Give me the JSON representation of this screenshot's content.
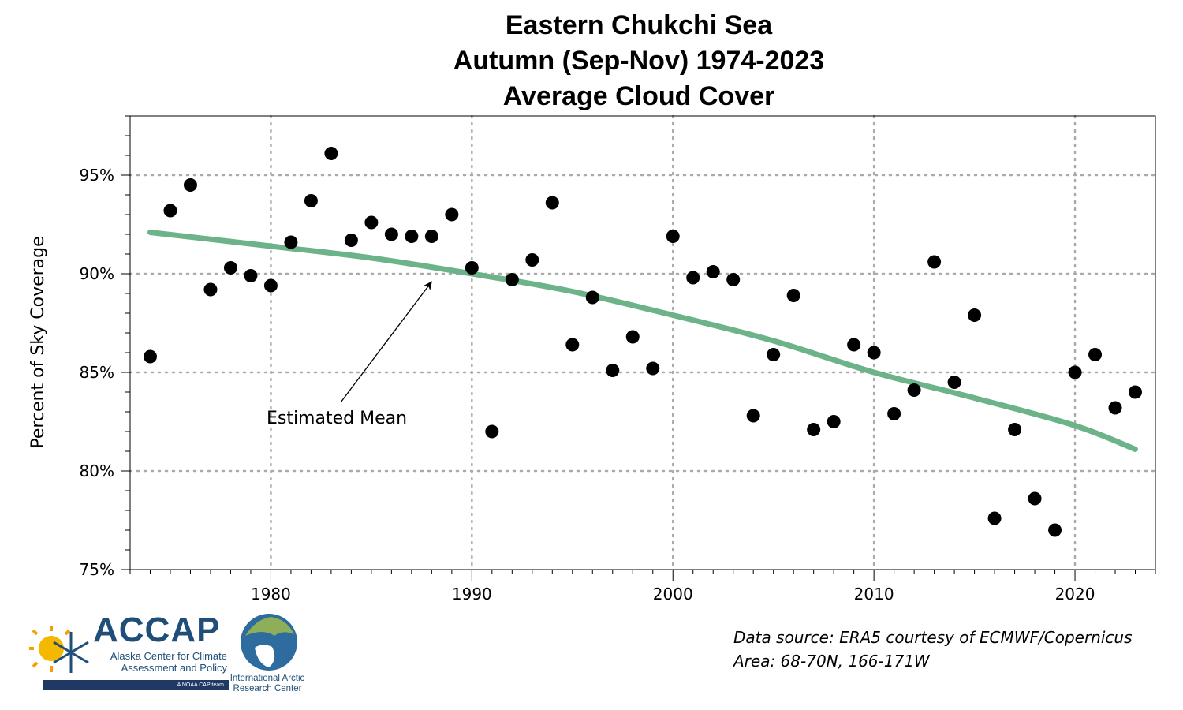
{
  "title_lines": [
    "Eastern Chukchi Sea",
    "Autumn (Sep-Nov) 1974-2023",
    "Average Cloud Cover"
  ],
  "chart_data": {
    "type": "scatter",
    "title": "Eastern Chukchi Sea Autumn (Sep-Nov) 1974-2023 Average Cloud Cover",
    "xlabel": "",
    "ylabel": "Percent of Sky Coverage",
    "xlim": [
      1973,
      2024
    ],
    "ylim": [
      75,
      98
    ],
    "x_ticks": [
      1980,
      1990,
      2000,
      2010,
      2020
    ],
    "y_ticks": [
      75,
      80,
      85,
      90,
      95
    ],
    "y_tick_labels": [
      "75%",
      "80%",
      "85%",
      "90%",
      "95%"
    ],
    "grid": true,
    "marker_color": "#000000",
    "series": [
      {
        "x": [
          1974,
          1975,
          1976,
          1977,
          1978,
          1979,
          1980,
          1981,
          1982,
          1983,
          1984,
          1985,
          1986,
          1987,
          1988,
          1989,
          1990,
          1991,
          1992,
          1993,
          1994,
          1995,
          1996,
          1997,
          1998,
          1999,
          2000,
          2001,
          2002,
          2003,
          2004,
          2005,
          2006,
          2007,
          2008,
          2009,
          2010,
          2011,
          2012,
          2013,
          2014,
          2015,
          2016,
          2017,
          2018,
          2019,
          2020,
          2021,
          2022,
          2023
        ],
        "y": [
          85.8,
          93.2,
          94.5,
          89.2,
          90.3,
          89.9,
          89.4,
          91.6,
          93.7,
          96.1,
          91.7,
          92.6,
          92.0,
          91.9,
          91.9,
          93.0,
          90.3,
          82.0,
          89.7,
          90.7,
          93.6,
          86.4,
          88.8,
          85.1,
          86.8,
          85.2,
          91.9,
          89.8,
          90.1,
          89.7,
          82.8,
          85.9,
          88.9,
          82.1,
          82.5,
          86.4,
          86.0,
          82.9,
          84.1,
          90.6,
          84.5,
          87.9,
          77.6,
          82.1,
          78.6,
          77.0,
          85.0,
          85.9,
          83.2,
          84.0
        ]
      },
      {
        "name": "Estimated Mean",
        "type": "line",
        "color": "#6db38a",
        "x": [
          1974,
          1980,
          1985,
          1990,
          1995,
          2000,
          2005,
          2010,
          2015,
          2020,
          2023
        ],
        "y": [
          92.1,
          91.4,
          90.8,
          90.0,
          89.1,
          87.9,
          86.6,
          85.0,
          83.7,
          82.3,
          81.1
        ]
      }
    ],
    "annotations": [
      {
        "text": "Estimated Mean",
        "points_to": [
          1988,
          89.6
        ]
      }
    ]
  },
  "footer": {
    "source_line1": "Data source: ERA5 courtesy of ECMWF/Copernicus",
    "source_line2": "Area: 68-70N, 166-171W"
  },
  "logos": {
    "accap_name": "ACCAP",
    "accap_sub1": "Alaska Center for Climate",
    "accap_sub2": "Assessment and Policy",
    "accap_bar": "A NOAA CAP team",
    "iarc_line1": "International Arctic",
    "iarc_line2": "Research Center"
  }
}
